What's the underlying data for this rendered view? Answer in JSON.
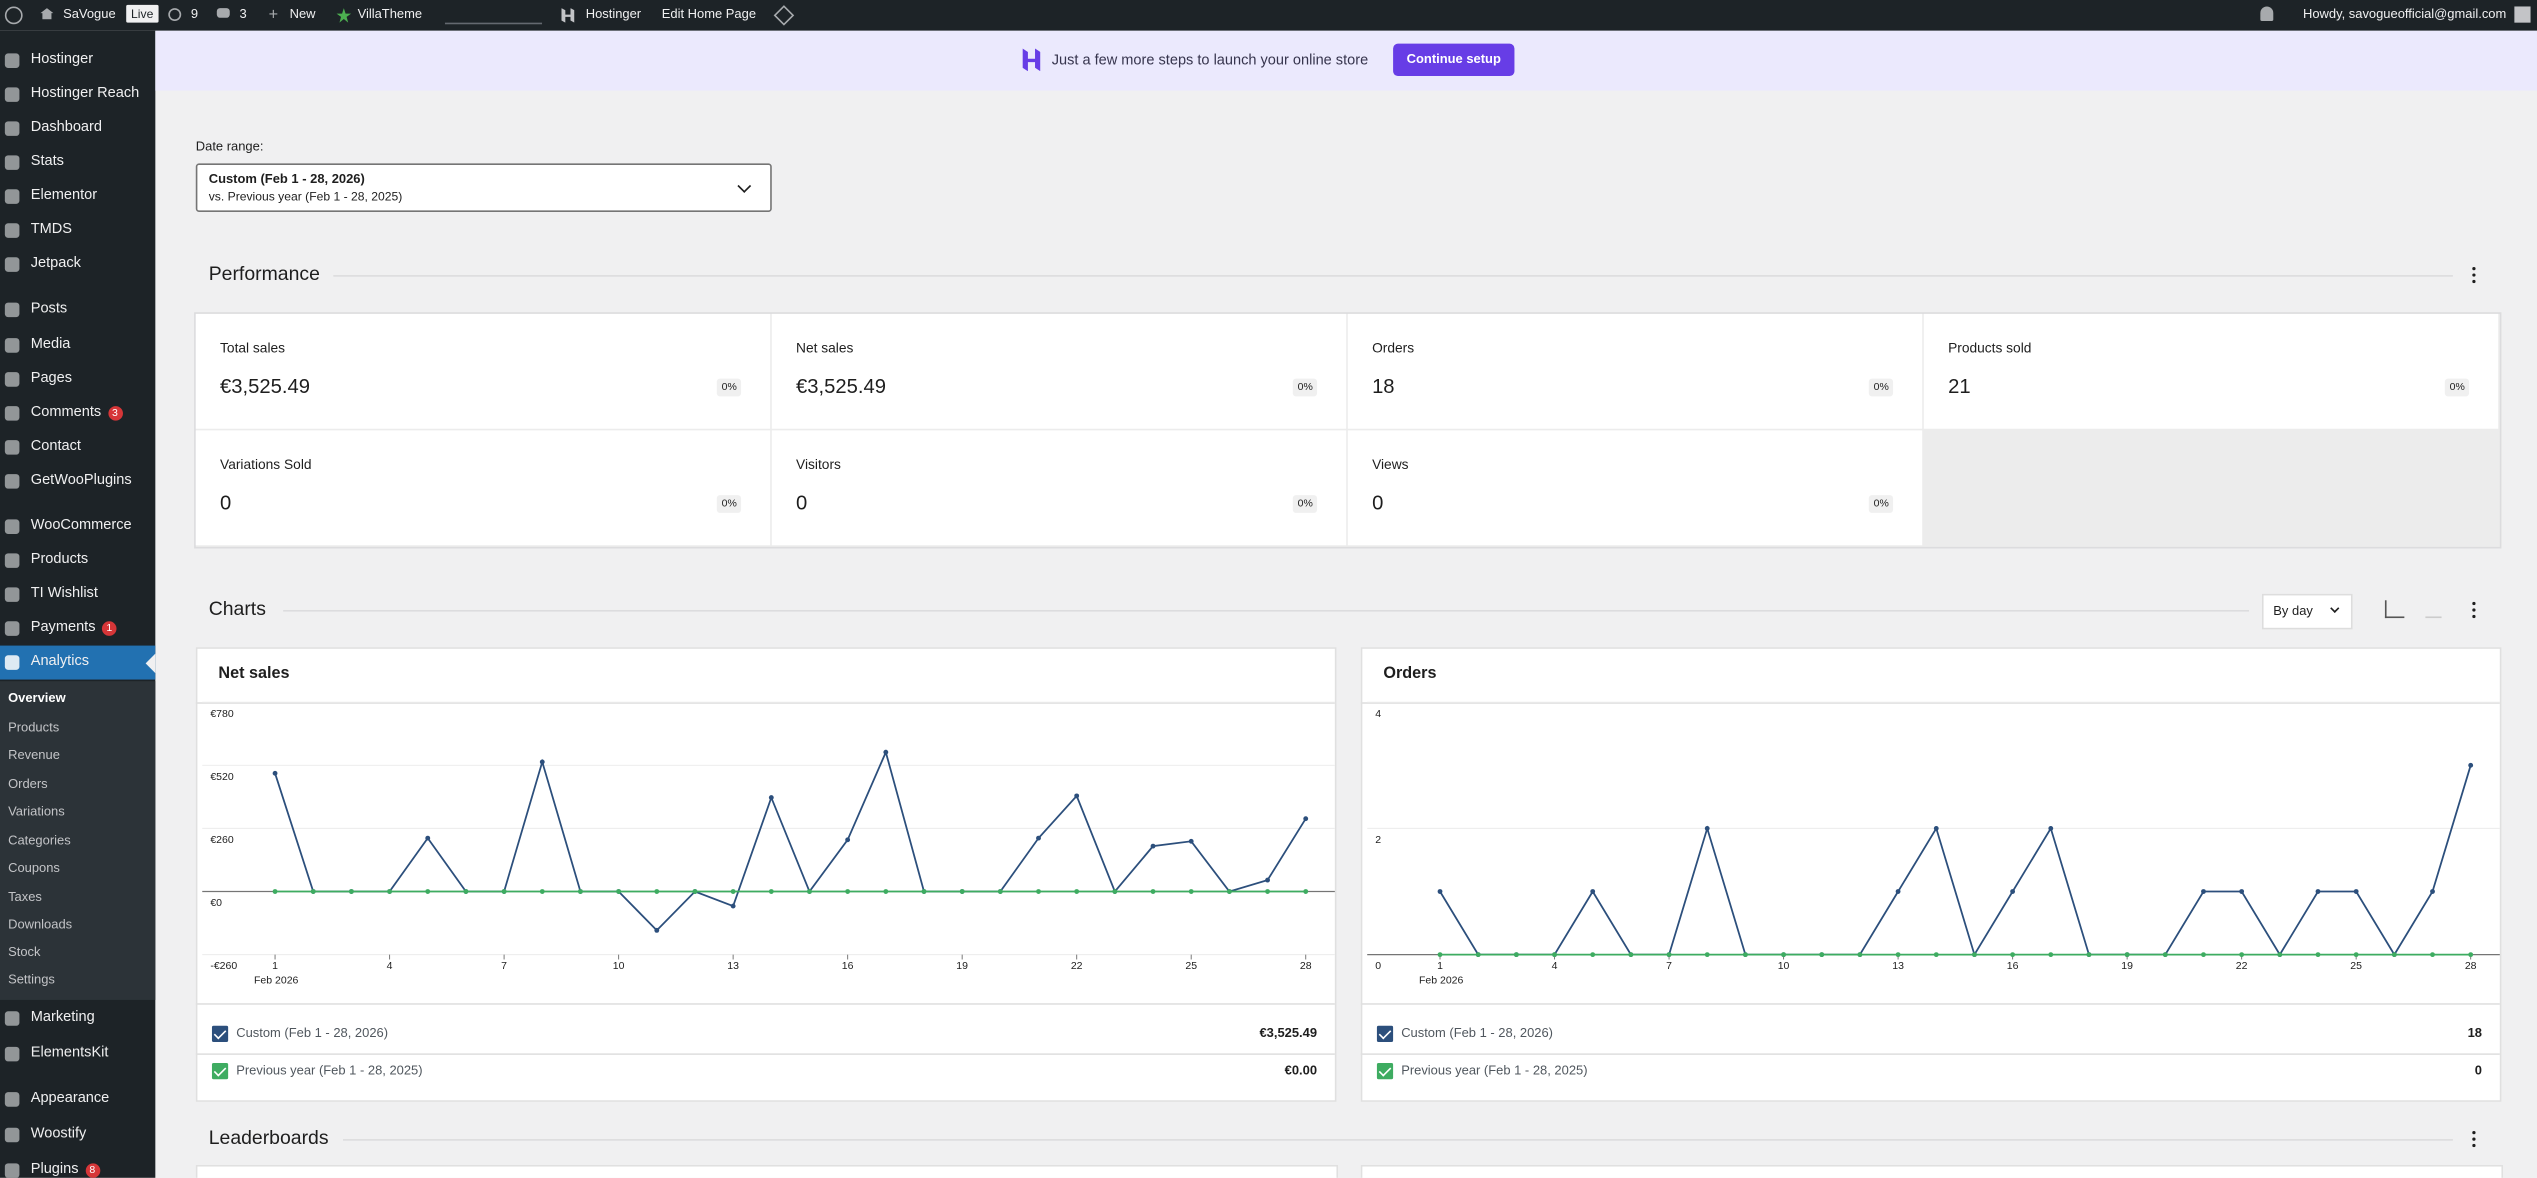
{
  "admin_bar": {
    "site": "SaVogue",
    "status": "Live",
    "updates": 9,
    "comments": 3,
    "new": "New",
    "theme": "VillaTheme",
    "hostinger": "Hostinger",
    "edit": "Edit Home Page",
    "greeting": "Howdy, savogueofficial@gmail.com"
  },
  "sidebar": {
    "menu_top": [
      {
        "label": "Hostinger"
      },
      {
        "label": "Hostinger Reach"
      },
      {
        "label": "Dashboard"
      },
      {
        "label": "Stats"
      },
      {
        "label": "Elementor"
      },
      {
        "label": "TMDS"
      },
      {
        "label": "Jetpack"
      },
      {
        "label": "Posts"
      },
      {
        "label": "Media"
      },
      {
        "label": "Pages"
      },
      {
        "label": "Comments",
        "badge": 3
      },
      {
        "label": "Contact"
      },
      {
        "label": "GetWooPlugins"
      },
      {
        "label": "WooCommerce"
      },
      {
        "label": "Products"
      },
      {
        "label": "TI Wishlist"
      },
      {
        "label": "Payments",
        "badge": 1
      }
    ],
    "current": {
      "label": "Analytics",
      "submenu": [
        "Overview",
        "Products",
        "Revenue",
        "Orders",
        "Variations",
        "Categories",
        "Coupons",
        "Taxes",
        "Downloads",
        "Stock",
        "Settings"
      ]
    },
    "menu_bottom": [
      {
        "label": "Marketing"
      },
      {
        "label": "ElementsKit"
      },
      {
        "label": "Appearance"
      },
      {
        "label": "Woostify"
      },
      {
        "label": "Plugins",
        "badge": 8
      }
    ]
  },
  "banner": {
    "text": "Just a few more steps to launch your online store",
    "button": "Continue setup"
  },
  "date_range": {
    "label": "Date range:",
    "primary": "Custom (Feb 1 - 28, 2026)",
    "compare": "vs. Previous year (Feb 1 - 28, 2025)"
  },
  "performance": {
    "title": "Performance",
    "cards": [
      {
        "label": "Total sales",
        "value": "€3,525.49",
        "change": "0%"
      },
      {
        "label": "Net sales",
        "value": "€3,525.49",
        "change": "0%"
      },
      {
        "label": "Orders",
        "value": 18,
        "change": "0%"
      },
      {
        "label": "Products sold",
        "value": 21,
        "change": "0%"
      },
      {
        "label": "Variations Sold",
        "value": 0,
        "change": "0%"
      },
      {
        "label": "Visitors",
        "value": 0,
        "change": "0%"
      },
      {
        "label": "Views",
        "value": 0,
        "change": "0%"
      }
    ]
  },
  "charts_section": {
    "title": "Charts",
    "interval": "By day"
  },
  "leaderboards": {
    "title": "Leaderboards"
  },
  "chart_data": [
    {
      "type": "line",
      "title": "Net sales",
      "categories": [
        "1",
        null,
        null,
        "4",
        null,
        null,
        "7",
        null,
        null,
        "10",
        null,
        null,
        "13",
        null,
        null,
        "16",
        null,
        null,
        "19",
        null,
        null,
        "22",
        null,
        null,
        "25",
        null,
        null,
        "28"
      ],
      "x_sublabel": "Feb 2026",
      "ylim": [
        -260,
        780
      ],
      "yticks": [
        {
          "value": -260,
          "label": "-€260"
        },
        {
          "value": 0,
          "label": "€0"
        },
        {
          "value": 260,
          "label": "€260"
        },
        {
          "value": 520,
          "label": "€520"
        },
        {
          "value": 780,
          "label": "€780"
        }
      ],
      "series": [
        {
          "name": "Custom (Feb 1 - 28, 2026)",
          "color": "#2c4f7c",
          "total": "€3,525.49",
          "values": [
            487,
            0,
            0,
            0,
            220,
            0,
            0,
            534,
            0,
            0,
            -160,
            0,
            -60,
            387,
            0,
            213,
            574,
            0,
            0,
            0,
            220,
            394,
            0,
            187,
            207,
            0,
            47,
            300
          ]
        },
        {
          "name": "Previous year (Feb 1 - 28, 2025)",
          "color": "#3eac61",
          "total": "€0.00",
          "values": [
            0,
            0,
            0,
            0,
            0,
            0,
            0,
            0,
            0,
            0,
            0,
            0,
            0,
            0,
            0,
            0,
            0,
            0,
            0,
            0,
            0,
            0,
            0,
            0,
            0,
            0,
            0,
            0
          ]
        }
      ]
    },
    {
      "type": "line",
      "title": "Orders",
      "categories": [
        "1",
        null,
        null,
        "4",
        null,
        null,
        "7",
        null,
        null,
        "10",
        null,
        null,
        "13",
        null,
        null,
        "16",
        null,
        null,
        "19",
        null,
        null,
        "22",
        null,
        null,
        "25",
        null,
        null,
        "28"
      ],
      "x_sublabel": "Feb 2026",
      "ylim": [
        0,
        4
      ],
      "yticks": [
        0,
        2,
        4
      ],
      "series": [
        {
          "name": "Custom (Feb 1 - 28, 2026)",
          "color": "#2c4f7c",
          "total": 18,
          "values": [
            1,
            0,
            0,
            0,
            1,
            0,
            0,
            2,
            0,
            0,
            0,
            0,
            1,
            2,
            0,
            1,
            2,
            0,
            0,
            0,
            1,
            1,
            0,
            1,
            1,
            0,
            1,
            3
          ]
        },
        {
          "name": "Previous year (Feb 1 - 28, 2025)",
          "color": "#3eac61",
          "total": 0,
          "values": [
            0,
            0,
            0,
            0,
            0,
            0,
            0,
            0,
            0,
            0,
            0,
            0,
            0,
            0,
            0,
            0,
            0,
            0,
            0,
            0,
            0,
            0,
            0,
            0,
            0,
            0,
            0,
            0
          ]
        }
      ]
    }
  ]
}
